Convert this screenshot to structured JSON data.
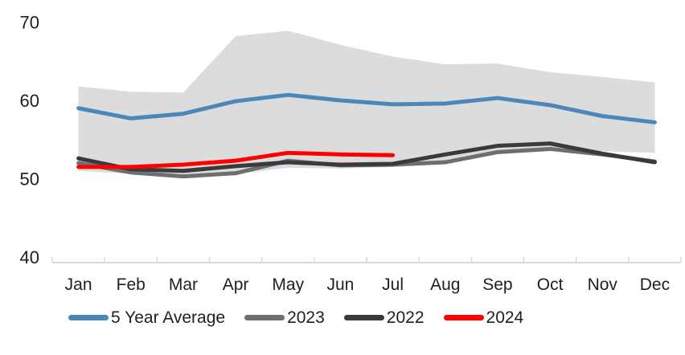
{
  "chart_data": {
    "type": "line",
    "title": "",
    "xlabel": "",
    "ylabel": "",
    "categories": [
      "Jan",
      "Feb",
      "Mar",
      "Apr",
      "May",
      "Jun",
      "Jul",
      "Aug",
      "Sep",
      "Oct",
      "Nov",
      "Dec"
    ],
    "ylim": [
      40,
      70
    ],
    "yticks": [
      40,
      50,
      60,
      70
    ],
    "grid": false,
    "legend_position": "bottom",
    "axis_color": "#D9D9D9",
    "label_color": "#1f1f1f",
    "band": {
      "name": "5-year range",
      "color": "#DCDCDC",
      "upper": [
        61.8,
        61.1,
        61.0,
        68.2,
        68.9,
        67.1,
        65.6,
        64.6,
        64.7,
        63.6,
        63.0,
        62.3
      ],
      "lower": [
        51.0,
        50.6,
        50.2,
        50.6,
        51.4,
        51.3,
        51.5,
        51.9,
        53.1,
        53.6,
        53.5,
        53.3
      ]
    },
    "series": [
      {
        "name": "5 Year Average",
        "color": "#4C87BA",
        "values": [
          59.0,
          57.7,
          58.3,
          59.9,
          60.7,
          60.0,
          59.5,
          59.6,
          60.3,
          59.4,
          58.0,
          57.2
        ]
      },
      {
        "name": "2023",
        "color": "#6D6E71",
        "values": [
          52.0,
          50.8,
          50.3,
          50.7,
          52.3,
          51.7,
          51.8,
          52.1,
          53.4,
          53.8,
          53.1,
          52.2
        ]
      },
      {
        "name": "2022",
        "color": "#3A3A3C",
        "values": [
          52.6,
          51.2,
          51.0,
          51.6,
          52.1,
          51.8,
          51.9,
          53.1,
          54.2,
          54.5,
          53.2,
          52.1
        ]
      },
      {
        "name": "2024",
        "color": "#FF0000",
        "values": [
          51.5,
          51.5,
          51.8,
          52.3,
          53.3,
          53.1,
          53.0,
          null,
          null,
          null,
          null,
          null
        ]
      }
    ],
    "legend": [
      "5 Year Average",
      "2023",
      "2022",
      "2024"
    ]
  }
}
